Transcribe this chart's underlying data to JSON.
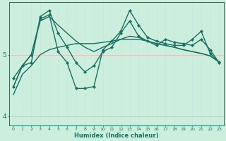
{
  "xlabel": "Humidex (Indice chaleur)",
  "background_color": "#cceedd",
  "grid_color_v": "#c8e8e0",
  "grid_color_h": "#f5b8b8",
  "line_color": "#1a7060",
  "xlim": [
    -0.5,
    23.5
  ],
  "ylim": [
    3.85,
    5.85
  ],
  "yticks": [
    4,
    5
  ],
  "xticks": [
    0,
    1,
    2,
    3,
    4,
    5,
    6,
    7,
    8,
    9,
    10,
    11,
    12,
    13,
    14,
    15,
    16,
    17,
    18,
    19,
    20,
    21,
    22,
    23
  ],
  "series": [
    {
      "y": [
        4.62,
        4.82,
        4.87,
        5.62,
        5.72,
        5.35,
        5.12,
        4.87,
        4.72,
        4.82,
        5.05,
        5.12,
        5.35,
        5.55,
        5.3,
        5.22,
        5.15,
        5.25,
        5.2,
        5.18,
        5.15,
        5.25,
        5.08,
        4.87
      ],
      "marker": "D",
      "markersize": 2.2,
      "linewidth": 1.0
    },
    {
      "y": [
        4.48,
        4.82,
        5.0,
        5.58,
        5.65,
        5.05,
        4.87,
        4.45,
        4.45,
        4.48,
        5.08,
        5.22,
        5.38,
        5.72,
        5.48,
        5.28,
        5.22,
        5.18,
        5.15,
        5.15,
        5.25,
        5.38,
        5.02,
        4.88
      ],
      "marker": "D",
      "markersize": 2.2,
      "linewidth": 1.0
    },
    {
      "y": [
        4.48,
        4.82,
        5.0,
        5.55,
        5.62,
        5.48,
        5.35,
        5.22,
        5.12,
        5.05,
        5.12,
        5.18,
        5.25,
        5.3,
        5.28,
        5.22,
        5.18,
        5.15,
        5.12,
        5.08,
        5.05,
        5.02,
        4.98,
        4.88
      ],
      "marker": null,
      "linewidth": 1.0
    },
    {
      "y": [
        4.35,
        4.68,
        4.82,
        5.0,
        5.08,
        5.12,
        5.15,
        5.18,
        5.18,
        5.18,
        5.2,
        5.22,
        5.25,
        5.25,
        5.25,
        5.22,
        5.18,
        5.15,
        5.12,
        5.08,
        5.05,
        5.02,
        4.98,
        4.88
      ],
      "marker": null,
      "linewidth": 1.0
    }
  ]
}
